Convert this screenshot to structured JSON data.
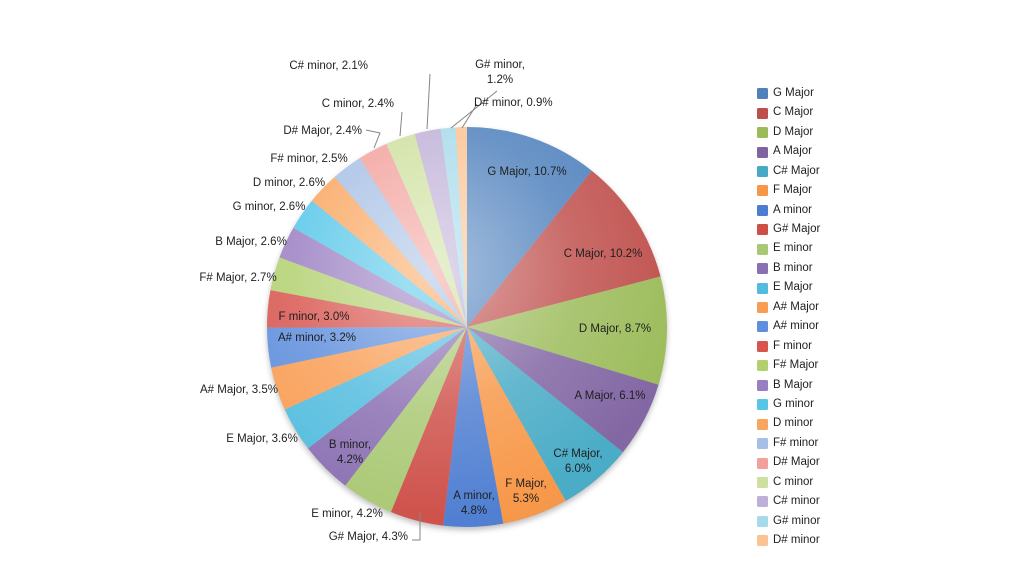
{
  "chart_data": {
    "type": "pie",
    "unit": "%",
    "legend_position": "right",
    "label_format": "{label}, {value}%",
    "slices": [
      {
        "label": "G Major",
        "value": 10.7,
        "color": "#4F81BD"
      },
      {
        "label": "C Major",
        "value": 10.2,
        "color": "#BF4F4C"
      },
      {
        "label": "D Major",
        "value": 8.7,
        "color": "#9BBB59"
      },
      {
        "label": "A Major",
        "value": 6.1,
        "color": "#8064A2"
      },
      {
        "label": "C# Major",
        "value": 6.0,
        "color": "#46AAC5"
      },
      {
        "label": "F Major",
        "value": 5.3,
        "color": "#F79646"
      },
      {
        "label": "A minor",
        "value": 4.8,
        "color": "#4D7DD1"
      },
      {
        "label": "G# Major",
        "value": 4.3,
        "color": "#CE4E48"
      },
      {
        "label": "E minor",
        "value": 4.2,
        "color": "#A9C873"
      },
      {
        "label": "B minor",
        "value": 4.2,
        "color": "#8A6FB2"
      },
      {
        "label": "E Major",
        "value": 3.6,
        "color": "#52BCDE"
      },
      {
        "label": "A# Major",
        "value": 3.5,
        "color": "#F99D54"
      },
      {
        "label": "A# minor",
        "value": 3.2,
        "color": "#5E8EDC"
      },
      {
        "label": "F minor",
        "value": 3.0,
        "color": "#D8554F"
      },
      {
        "label": "F# Major",
        "value": 2.7,
        "color": "#B2D06F"
      },
      {
        "label": "B Major",
        "value": 2.6,
        "color": "#9A7EC2"
      },
      {
        "label": "G minor",
        "value": 2.6,
        "color": "#55C6E8"
      },
      {
        "label": "D minor",
        "value": 2.6,
        "color": "#F9A55E"
      },
      {
        "label": "F# minor",
        "value": 2.5,
        "color": "#A6BFE4"
      },
      {
        "label": "D# Major",
        "value": 2.4,
        "color": "#F2A09C"
      },
      {
        "label": "C minor",
        "value": 2.4,
        "color": "#CEE09E"
      },
      {
        "label": "C# minor",
        "value": 2.1,
        "color": "#BFB0D8"
      },
      {
        "label": "G# minor",
        "value": 1.2,
        "color": "#A6DAEA"
      },
      {
        "label": "D# minor",
        "value": 0.9,
        "color": "#FBC392"
      }
    ]
  }
}
